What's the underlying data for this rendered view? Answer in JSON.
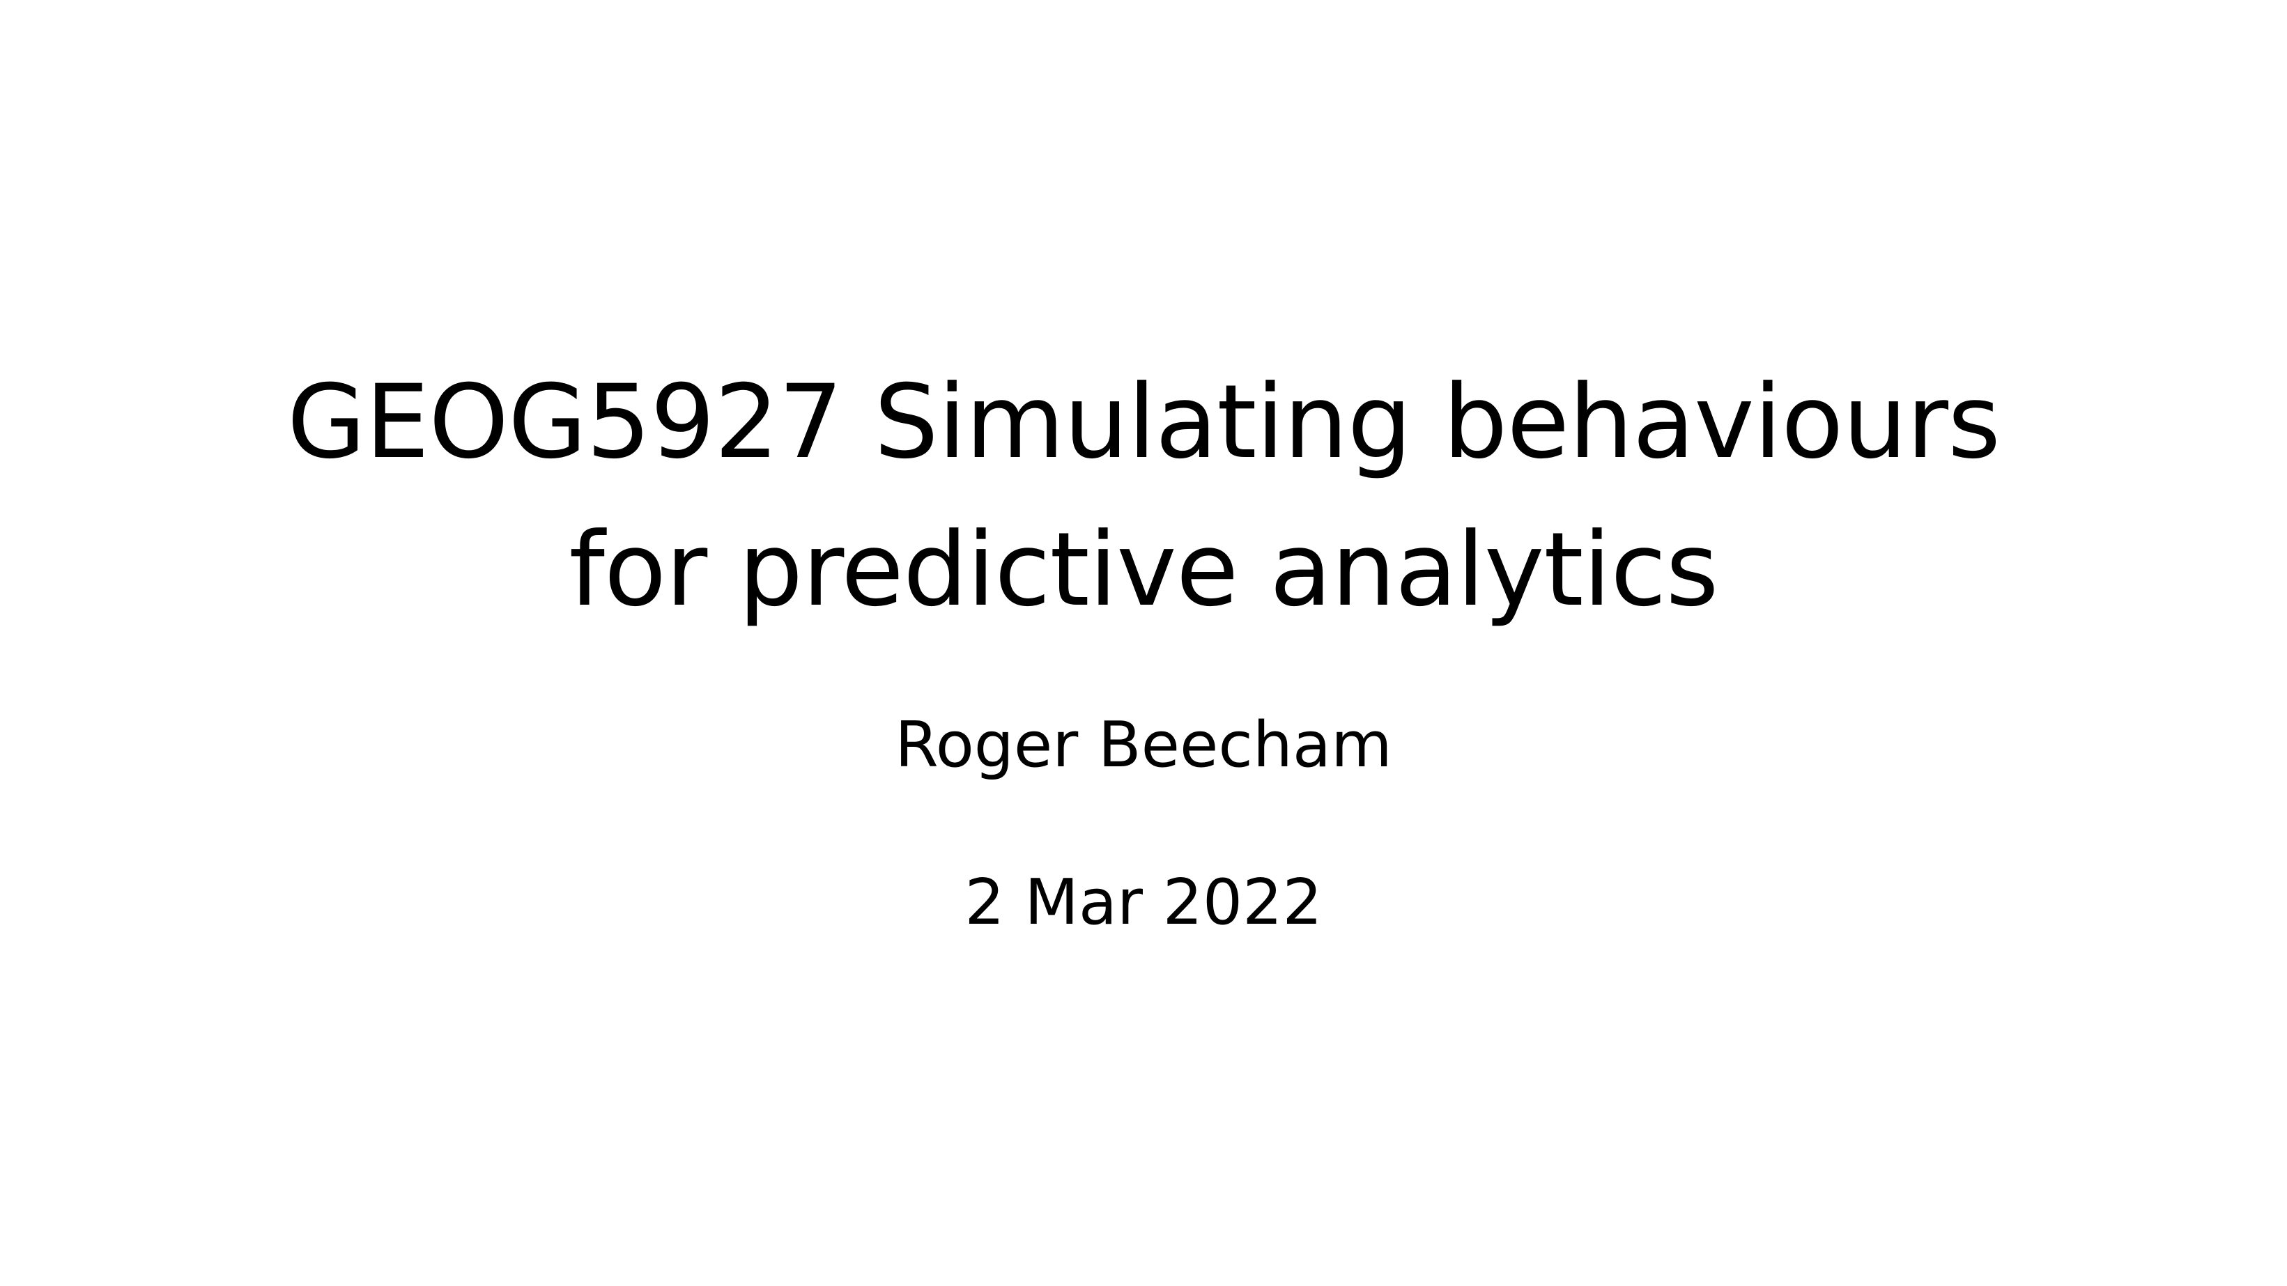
{
  "slide": {
    "title": "GEOG5927 Simulating behaviours for predictive analytics",
    "author": "Roger Beecham",
    "date": "2 Mar 2022"
  }
}
